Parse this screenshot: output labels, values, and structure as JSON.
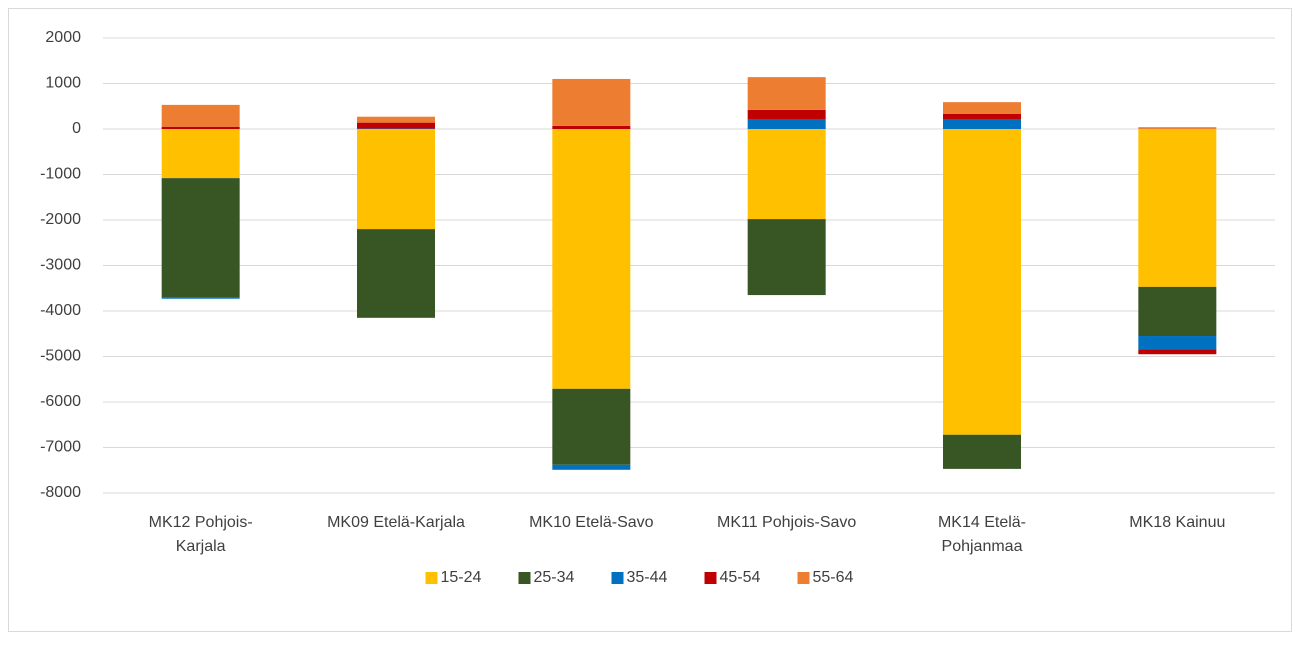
{
  "chart_data": {
    "type": "stacked_bar",
    "categories": [
      "MK12 Pohjois-Karjala",
      "MK09 Etelä-Karjala",
      "MK10 Etelä-Savo",
      "MK11 Pohjois-Savo",
      "MK14 Etelä-Pohjanmaa",
      "MK18 Kainuu"
    ],
    "series": [
      {
        "name": "15-24",
        "color": "#ffc000",
        "values": [
          -1080,
          -2200,
          -5710,
          -1980,
          -6720,
          -3470
        ]
      },
      {
        "name": "25-34",
        "color": "#375623",
        "values": [
          -2630,
          -1950,
          -1670,
          -1670,
          -750,
          -1080
        ]
      },
      {
        "name": "35-44",
        "color": "#0070c0",
        "values": [
          -20,
          10,
          -110,
          220,
          220,
          -290
        ]
      },
      {
        "name": "45-54",
        "color": "#c00000",
        "values": [
          50,
          130,
          70,
          200,
          110,
          -110
        ]
      },
      {
        "name": "55-64",
        "color": "#ed7d31",
        "values": [
          480,
          130,
          1030,
          720,
          260,
          40
        ]
      }
    ],
    "ylim": [
      -8000,
      2000
    ],
    "yticks": [
      -8000,
      -7000,
      -6000,
      -5000,
      -4000,
      -3000,
      -2000,
      -1000,
      0,
      1000,
      2000
    ],
    "grid": true,
    "legend": "bottom"
  }
}
